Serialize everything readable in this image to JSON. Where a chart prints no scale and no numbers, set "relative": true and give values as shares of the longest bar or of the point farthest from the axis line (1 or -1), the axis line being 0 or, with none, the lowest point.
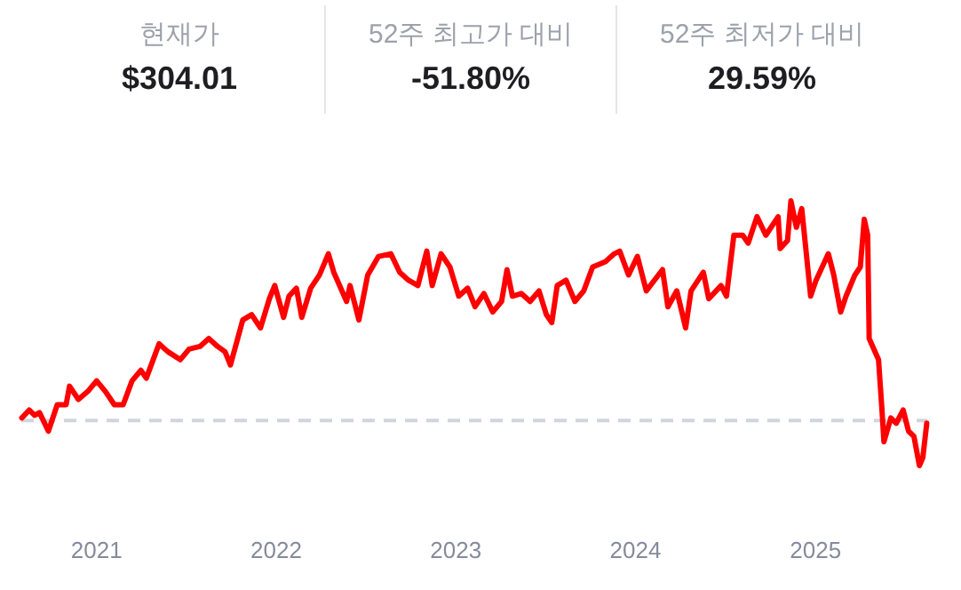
{
  "chart_data": [
    {
      "type": "other",
      "annotations": [
        "현재가",
        "$304.01",
        "52주 최고가 대비",
        "-51.80%",
        "52주 최저가 대비",
        "29.59%"
      ]
    },
    {
      "type": "line",
      "relative": true,
      "color": "#ff0000",
      "line_style": "solid",
      "xlim": [
        "2020-08-01",
        "2025-08-16"
      ],
      "xticks": [
        "2021",
        "2022",
        "2023",
        "2024",
        "2025"
      ],
      "ref_lines": [
        {
          "axis": "y",
          "value": 0.17,
          "color": "#d0d4de",
          "line_style": "dashed"
        }
      ],
      "x": [
        "2020-08-02",
        "2020-08-17",
        "2020-08-28",
        "2020-09-07",
        "2020-09-25",
        "2020-10-13",
        "2020-10-31",
        "2020-11-07",
        "2020-11-25",
        "2020-12-14",
        "2021-01-01",
        "2021-01-19",
        "2021-02-06",
        "2021-02-24",
        "2021-03-14",
        "2021-04-01",
        "2021-04-12",
        "2021-05-08",
        "2021-05-26",
        "2021-06-20",
        "2021-07-08",
        "2021-07-30",
        "2021-08-17",
        "2021-09-04",
        "2021-09-19",
        "2021-09-30",
        "2021-10-25",
        "2021-11-12",
        "2021-11-30",
        "2021-12-18",
        "2021-12-29",
        "2022-01-16",
        "2022-01-27",
        "2022-02-11",
        "2022-02-22",
        "2022-03-12",
        "2022-03-30",
        "2022-04-17",
        "2022-04-28",
        "2022-05-24",
        "2022-05-31",
        "2022-06-18",
        "2022-07-06",
        "2022-07-28",
        "2022-08-22",
        "2022-09-09",
        "2022-09-27",
        "2022-10-16",
        "2022-11-03",
        "2022-11-14",
        "2022-12-02",
        "2022-12-20",
        "2023-01-07",
        "2023-01-25",
        "2023-02-09",
        "2023-02-27",
        "2023-03-17",
        "2023-04-04",
        "2023-04-15",
        "2023-04-26",
        "2023-05-14",
        "2023-06-01",
        "2023-06-19",
        "2023-07-04",
        "2023-07-15",
        "2023-07-26",
        "2023-08-13",
        "2023-08-31",
        "2023-09-18",
        "2023-10-06",
        "2023-11-01",
        "2023-11-19",
        "2023-11-30",
        "2023-12-18",
        "2024-01-05",
        "2024-01-23",
        "2024-02-25",
        "2024-03-07",
        "2024-03-25",
        "2024-04-12",
        "2024-04-23",
        "2024-05-18",
        "2024-05-29",
        "2024-06-23",
        "2024-07-04",
        "2024-07-19",
        "2024-08-06",
        "2024-08-17",
        "2024-09-04",
        "2024-09-22",
        "2024-10-17",
        "2024-10-21",
        "2024-11-05",
        "2024-11-12",
        "2024-11-23",
        "2024-12-04",
        "2024-12-22",
        "2025-01-02",
        "2025-01-27",
        "2025-02-07",
        "2025-02-21",
        "2025-03-04",
        "2025-03-22",
        "2025-04-02",
        "2025-04-10",
        "2025-04-17",
        "2025-04-20",
        "2025-05-09",
        "2025-05-16",
        "2025-05-20",
        "2025-06-03",
        "2025-06-14",
        "2025-06-28",
        "2025-07-09",
        "2025-07-20",
        "2025-07-31",
        "2025-08-07",
        "2025-08-15"
      ],
      "values": [
        0.18,
        0.21,
        0.19,
        0.2,
        0.13,
        0.23,
        0.23,
        0.3,
        0.25,
        0.28,
        0.32,
        0.28,
        0.23,
        0.23,
        0.32,
        0.36,
        0.33,
        0.46,
        0.43,
        0.4,
        0.44,
        0.45,
        0.48,
        0.45,
        0.43,
        0.38,
        0.55,
        0.57,
        0.52,
        0.63,
        0.68,
        0.56,
        0.64,
        0.67,
        0.56,
        0.67,
        0.72,
        0.8,
        0.73,
        0.62,
        0.68,
        0.55,
        0.72,
        0.79,
        0.8,
        0.73,
        0.7,
        0.68,
        0.81,
        0.68,
        0.8,
        0.75,
        0.64,
        0.67,
        0.6,
        0.65,
        0.58,
        0.62,
        0.74,
        0.64,
        0.65,
        0.62,
        0.66,
        0.57,
        0.54,
        0.68,
        0.7,
        0.62,
        0.66,
        0.75,
        0.77,
        0.8,
        0.81,
        0.72,
        0.79,
        0.66,
        0.74,
        0.6,
        0.66,
        0.52,
        0.66,
        0.73,
        0.63,
        0.68,
        0.64,
        0.87,
        0.87,
        0.84,
        0.94,
        0.87,
        0.94,
        0.82,
        0.85,
        1.0,
        0.9,
        0.97,
        0.64,
        0.7,
        0.8,
        0.72,
        0.58,
        0.64,
        0.72,
        0.75,
        0.93,
        0.87,
        0.48,
        0.4,
        0.21,
        0.09,
        0.18,
        0.16,
        0.21,
        0.13,
        0.11,
        0.0,
        0.03,
        0.16
      ]
    }
  ]
}
